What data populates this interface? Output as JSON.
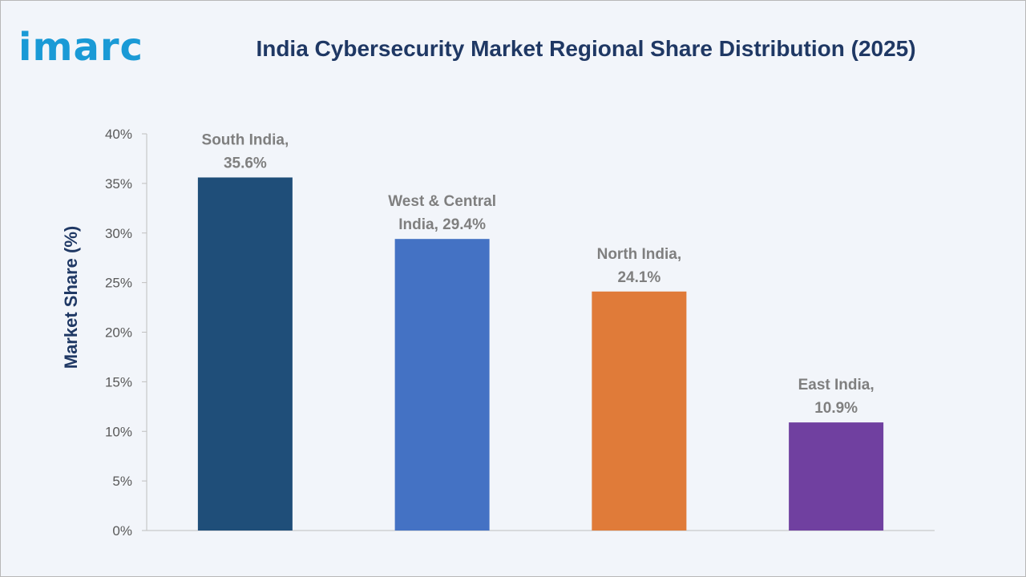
{
  "logo": {
    "text": "imarc",
    "color": "#1a9ad6"
  },
  "chart_data": {
    "type": "bar",
    "title": "India Cybersecurity Market Regional Share Distribution (2025)",
    "xlabel": "",
    "ylabel": "Market Share (%)",
    "ylim": [
      0,
      40
    ],
    "yticks": [
      0,
      5,
      10,
      15,
      20,
      25,
      30,
      35,
      40
    ],
    "ytick_labels": [
      "0%",
      "5%",
      "10%",
      "15%",
      "20%",
      "25%",
      "30%",
      "35%",
      "40%"
    ],
    "grid": false,
    "legend": "none",
    "categories": [
      "South India",
      "West & Central India",
      "North India",
      "East India"
    ],
    "values": [
      35.6,
      29.4,
      24.1,
      10.9
    ],
    "data_labels": [
      [
        "South India,",
        "35.6%"
      ],
      [
        "West & Central",
        "India, 29.4%"
      ],
      [
        "North India,",
        "24.1%"
      ],
      [
        "East India,",
        "10.9%"
      ]
    ],
    "colors": [
      "#1f4e79",
      "#4472c4",
      "#e07b39",
      "#7040a0"
    ]
  }
}
